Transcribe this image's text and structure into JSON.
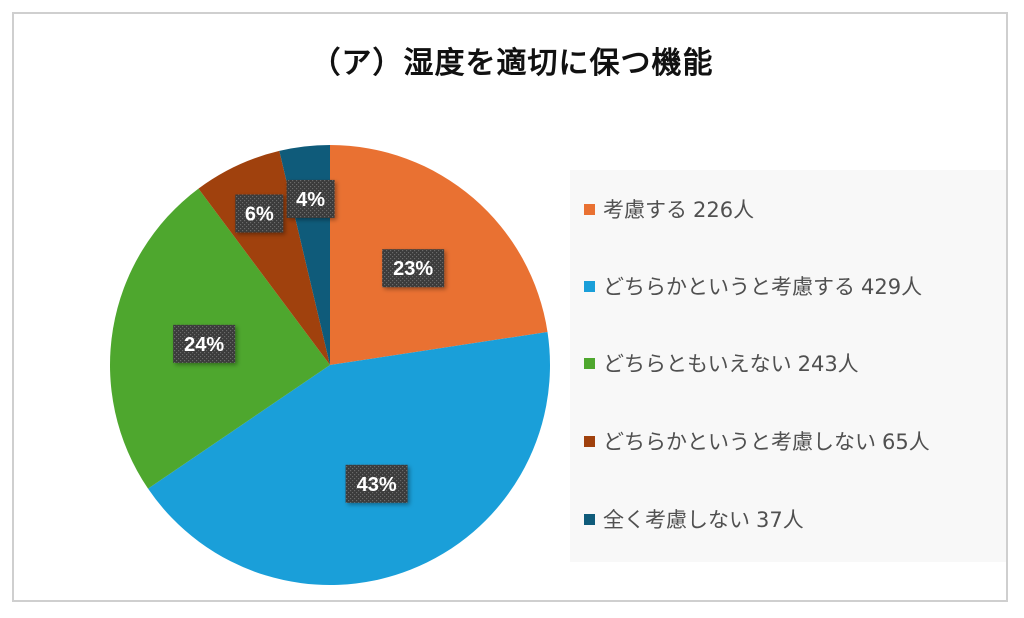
{
  "chart_data": {
    "type": "pie",
    "title": "（ア）湿度を適切に保つ機能",
    "slices": [
      {
        "label": "考慮する",
        "count": "226人",
        "value": 226,
        "percent_label": "23%",
        "color": "#e97132"
      },
      {
        "label": "どちらかというと考慮する",
        "count": "429人",
        "value": 429,
        "percent_label": "43%",
        "color": "#1a9fd9"
      },
      {
        "label": "どちらともいえない",
        "count": "243人",
        "value": 243,
        "percent_label": "24%",
        "color": "#4ea72e"
      },
      {
        "label": "どちらかというと考慮しない",
        "count": "65人",
        "value": 65,
        "percent_label": "6%",
        "color": "#a0410d"
      },
      {
        "label": "全く考慮しない",
        "count": "37人",
        "value": 37,
        "percent_label": "4%",
        "color": "#0f5b7a"
      }
    ],
    "legend_position": "right"
  }
}
